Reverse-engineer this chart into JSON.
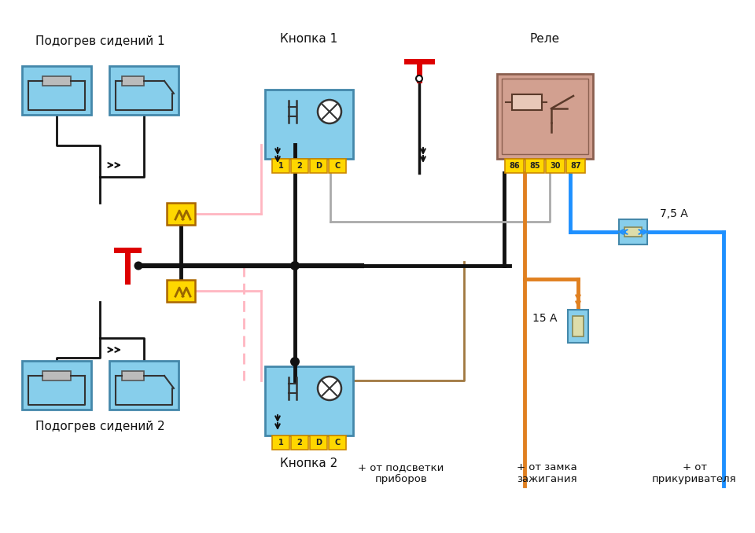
{
  "bg_color": "#ffffff",
  "labels": {
    "seat1": "Подогрев сидений 1",
    "seat2": "Подогрев сидений 2",
    "button1": "Кнопка 1",
    "button2": "Кнопка 2",
    "relay": "Реле",
    "fuse75": "7,5 А",
    "fuse15": "15 А",
    "plus_lights": "+ от подсветки\nприборов",
    "plus_ignition": "+ от замка\nзажигания",
    "plus_lighter": "+ от\nприкуривателя"
  },
  "colors": {
    "blue_box": "#87CEEB",
    "blue_box_border": "#4488AA",
    "yellow_pin": "#FFD700",
    "yellow_pin_border": "#CC8800",
    "relay_box": "#D2A090",
    "relay_box_border": "#8B6050",
    "wire_black": "#111111",
    "wire_pink": "#FFB6C1",
    "wire_gray": "#AAAAAA",
    "wire_orange": "#E08020",
    "wire_blue": "#1E90FF",
    "wire_red": "#DD0000",
    "resistor_fill": "#BBBBBB",
    "fuse_fill": "#DDDDAA",
    "fuse_blue": "#87CEEB"
  }
}
